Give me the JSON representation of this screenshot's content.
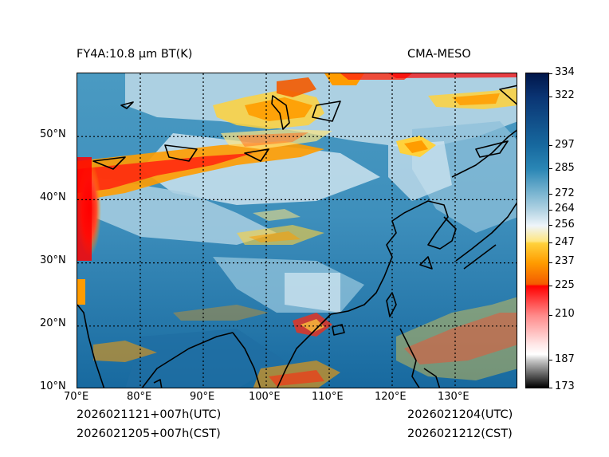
{
  "header": {
    "title_left": "FY4A:10.8 µm BT(K)",
    "title_right": "CMA-MESO"
  },
  "footer": {
    "init_utc": "2026021121+007h(UTC)",
    "init_cst": "2026021205+007h(CST)",
    "valid_utc": "2026021204(UTC)",
    "valid_cst": "2026021212(CST)"
  },
  "map": {
    "projection": "PlateCarree",
    "lon_range": [
      70,
      140
    ],
    "lat_range": [
      10,
      60
    ],
    "lon_ticks": [
      "70°E",
      "80°E",
      "90°E",
      "100°E",
      "110°E",
      "120°E",
      "130°E"
    ],
    "lat_ticks": [
      "10°N",
      "20°N",
      "30°N",
      "40°N",
      "50°N"
    ],
    "gridline_style": "dotted-black",
    "variable": "brightness temperature",
    "units": "K"
  },
  "colorbar": {
    "min": 173,
    "max": 334,
    "tick_labels": [
      "334",
      "322",
      "297",
      "285",
      "272",
      "264",
      "256",
      "247",
      "237",
      "225",
      "210",
      "187",
      "173"
    ],
    "tick_values": [
      334,
      322,
      297,
      285,
      272,
      264,
      256,
      247,
      237,
      225,
      210,
      187,
      173
    ],
    "color_stops": [
      {
        "value": 334,
        "color": "#00164a"
      },
      {
        "value": 322,
        "color": "#0a3473"
      },
      {
        "value": 297,
        "color": "#17699f"
      },
      {
        "value": 285,
        "color": "#2a86b5"
      },
      {
        "value": 272,
        "color": "#7eb7d2"
      },
      {
        "value": 264,
        "color": "#b2d3e3"
      },
      {
        "value": 256,
        "color": "#eef5fa"
      },
      {
        "value": 248,
        "color": "#ffe680"
      },
      {
        "value": 247,
        "color": "#ffd23c"
      },
      {
        "value": 237,
        "color": "#ff9c00"
      },
      {
        "value": 226,
        "color": "#f45a00"
      },
      {
        "value": 225,
        "color": "#ff0000"
      },
      {
        "value": 210,
        "color": "#ff8a8a"
      },
      {
        "value": 195,
        "color": "#ffe8e8"
      },
      {
        "value": 190,
        "color": "#ffffff"
      },
      {
        "value": 187,
        "color": "#c8c8c8"
      },
      {
        "value": 173,
        "color": "#000000"
      }
    ]
  }
}
